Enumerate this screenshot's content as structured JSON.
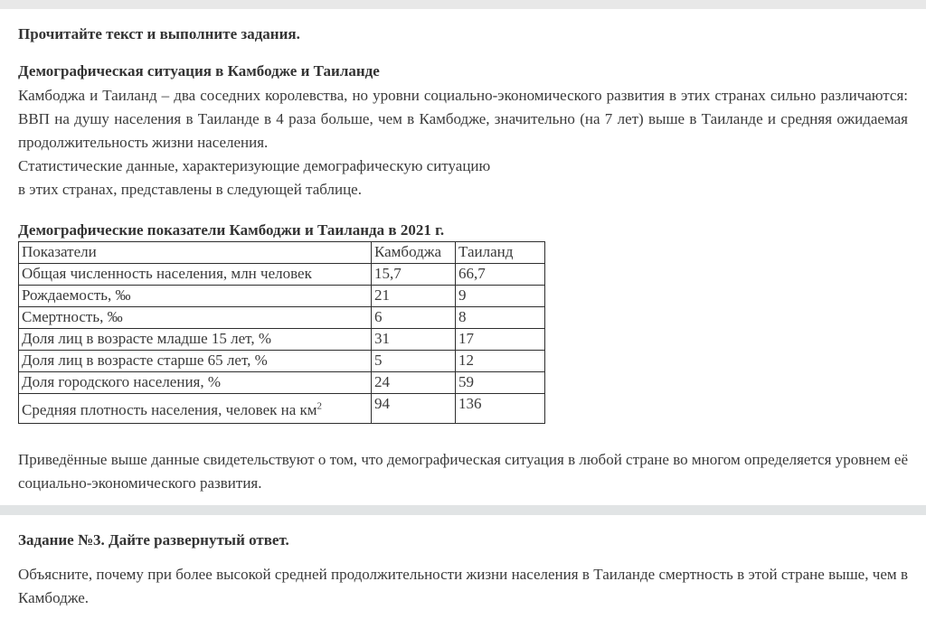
{
  "page": {
    "instruction_title": "Прочитайте текст и выполните задания.",
    "text_title": "Демографическая ситуация в Камбодже и Таиланде",
    "intro_paragraph": "Камбоджа и Таиланд – два соседних королевства, но уровни социально-экономического развития в этих странах сильно различаются: ВВП на душу населения в Таиланде в 4 раза больше, чем в Камбодже, значительно (на 7 лет) выше в Таиланде и средняя ожидаемая продолжительность жизни населения.",
    "stat_line1": "Статистические данные, характеризующие демографическую ситуацию",
    "stat_line2": "в этих странах, представлены в следующей таблице.",
    "table_caption": "Демографические показатели Камбоджи и Таиланда в 2021 г.",
    "conclusion": "Приведённые выше данные свидетельствуют о том, что демографическая ситуация в любой стране во многом определяется уровнем её социально-экономического развития.",
    "task_title": "Задание №3. Дайте развернутый ответ.",
    "task_text": "Объясните, почему при более высокой средней продолжительности жизни населения в Таиланде смертность в этой стране выше, чем в Камбодже."
  },
  "table": {
    "headers": [
      "Показатели",
      "Камбоджа",
      "Таиланд"
    ],
    "rows": [
      {
        "label": "Общая численность населения, млн человек",
        "cambodia": "15,7",
        "thailand": "66,7"
      },
      {
        "label": "Рождаемость, ‰",
        "cambodia": "21",
        "thailand": "9"
      },
      {
        "label": "Смертность, ‰",
        "cambodia": "6",
        "thailand": "8"
      },
      {
        "label": "Доля лиц в возрасте младше 15 лет, %",
        "cambodia": "31",
        "thailand": "17"
      },
      {
        "label": "Доля лиц в возрасте старше 65 лет, %",
        "cambodia": "5",
        "thailand": "12"
      },
      {
        "label": "Доля городского населения, %",
        "cambodia": "24",
        "thailand": "59"
      },
      {
        "label": "Средняя плотность населения, человек на км",
        "label_sup": "2",
        "cambodia": "94",
        "thailand": "136"
      }
    ]
  }
}
